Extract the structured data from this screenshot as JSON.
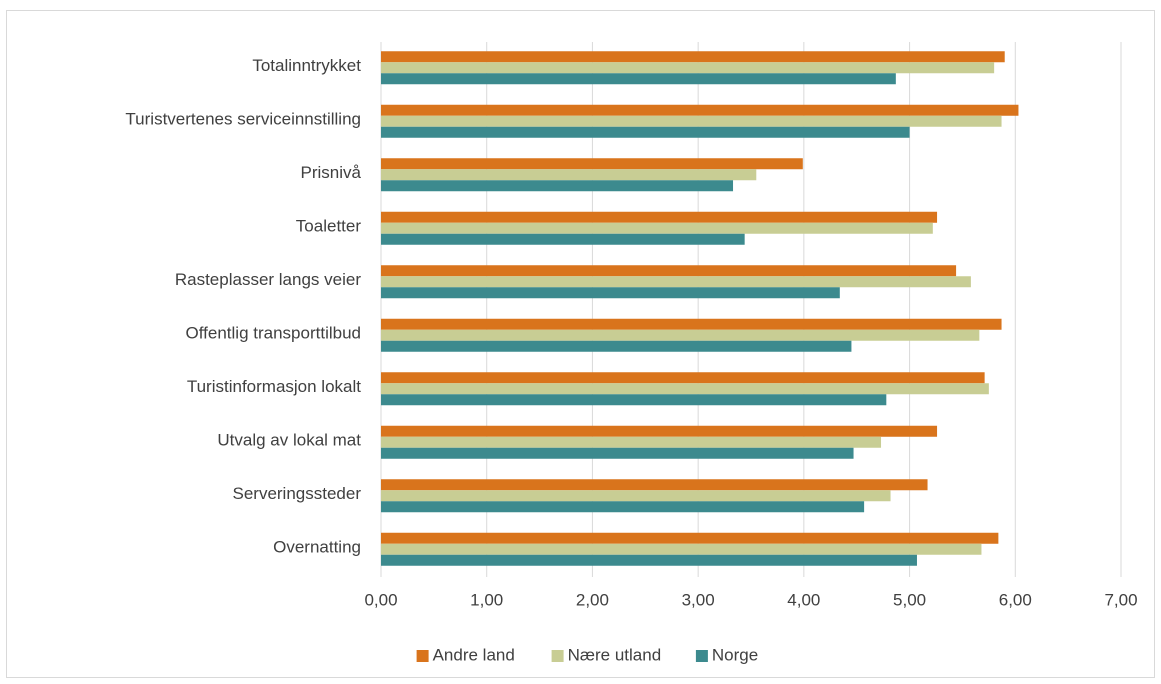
{
  "chart_data": {
    "type": "hbar",
    "categories": [
      "Totalinntrykket",
      "Turistvertenes serviceinnstilling",
      "Prisnivå",
      "Toaletter",
      "Rasteplasser langs veier",
      "Offentlig transporttilbud",
      "Turistinformasjon lokalt",
      "Utvalg av lokal mat",
      "Serveringssteder",
      "Overnatting"
    ],
    "series": [
      {
        "name": "Andre land",
        "color": "#d9741c",
        "values": [
          5.9,
          6.03,
          3.99,
          5.26,
          5.44,
          5.87,
          5.71,
          5.26,
          5.17,
          5.84
        ]
      },
      {
        "name": "Nære utland",
        "color": "#c8cd94",
        "values": [
          5.8,
          5.87,
          3.55,
          5.22,
          5.58,
          5.66,
          5.75,
          4.73,
          4.82,
          5.68
        ]
      },
      {
        "name": "Norge",
        "color": "#3c8a8e",
        "values": [
          4.87,
          5.0,
          3.33,
          3.44,
          4.34,
          4.45,
          4.78,
          4.47,
          4.57,
          5.07
        ]
      }
    ],
    "xlim": [
      0,
      7
    ],
    "xticks": [
      {
        "value": 0,
        "label": "0,00"
      },
      {
        "value": 1,
        "label": "1,00"
      },
      {
        "value": 2,
        "label": "2,00"
      },
      {
        "value": 3,
        "label": "3,00"
      },
      {
        "value": 4,
        "label": "4,00"
      },
      {
        "value": 5,
        "label": "5,00"
      },
      {
        "value": 6,
        "label": "6,00"
      },
      {
        "value": 7,
        "label": "7,00"
      }
    ],
    "grid": true,
    "legend": "bottom"
  }
}
